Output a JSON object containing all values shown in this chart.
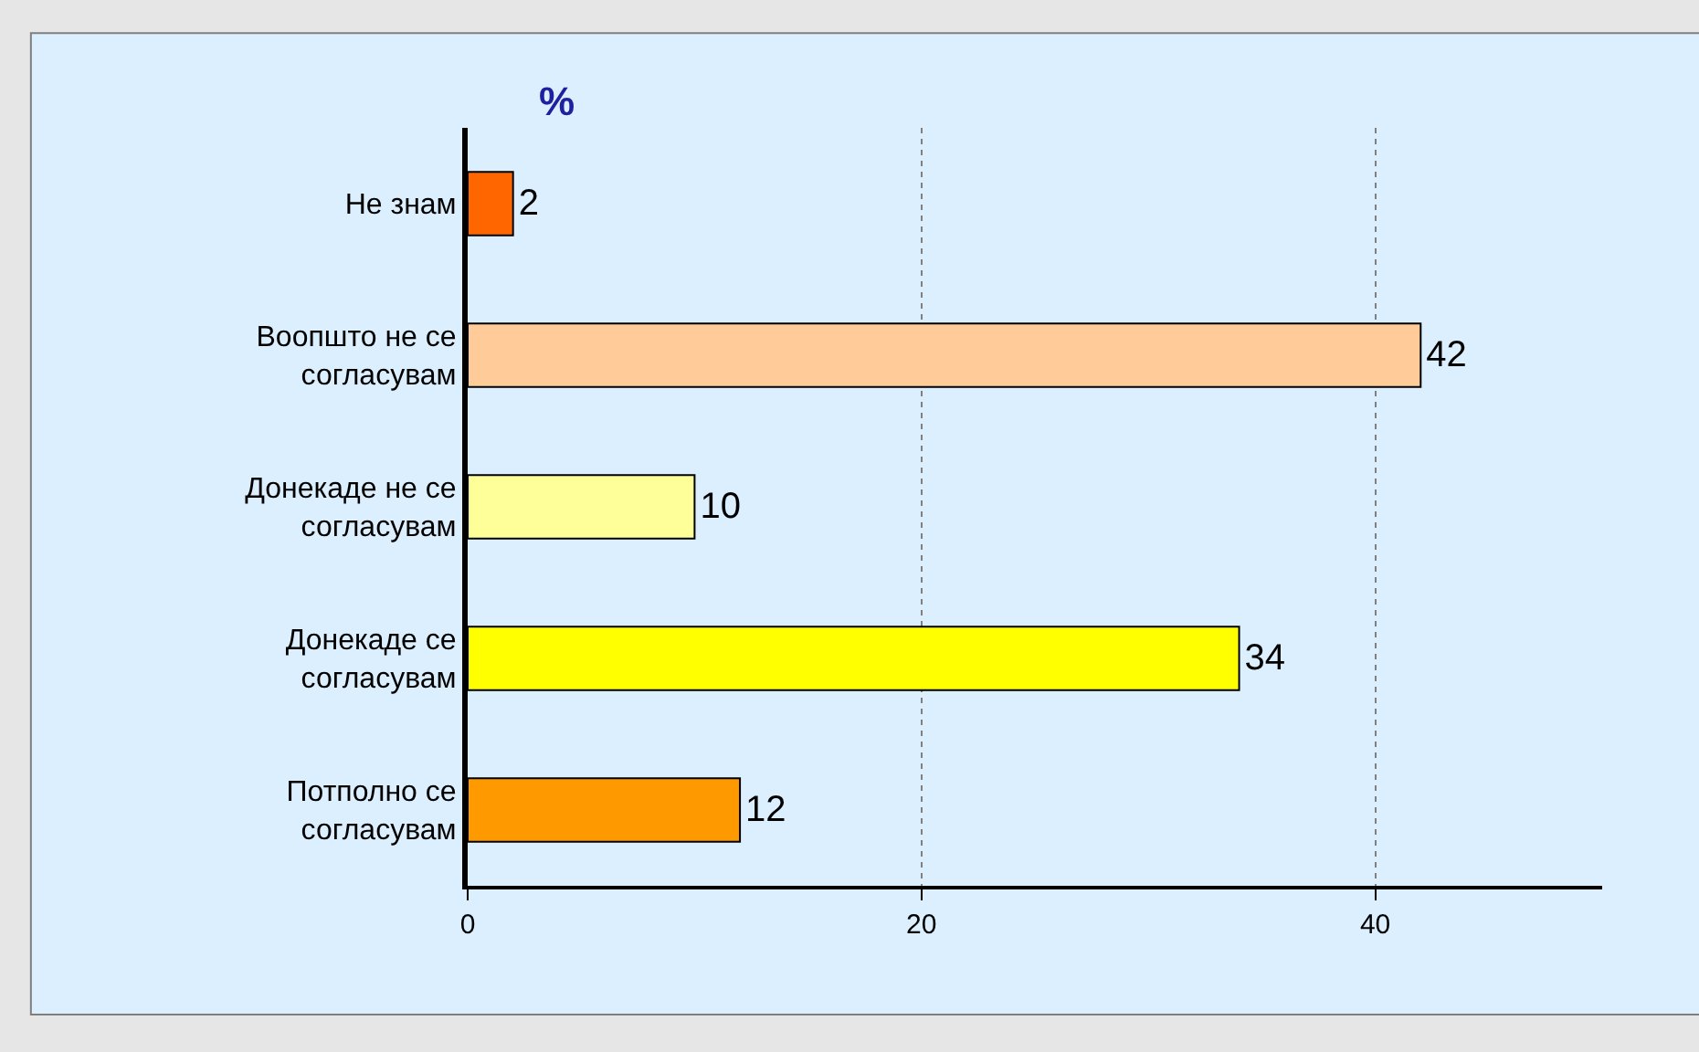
{
  "chart_data": {
    "type": "bar",
    "orientation": "horizontal",
    "categories": [
      "Не знам",
      "Воопшто не се\nсогласувам",
      "Донекаде не се\nсогласувам",
      "Донекаде се\nсогласувам",
      "Потполно се\nсогласувам"
    ],
    "values": [
      2,
      42,
      10,
      34,
      12
    ],
    "colors": [
      "#ff6600",
      "#ffcc99",
      "#ffff99",
      "#ffff00",
      "#ff9900"
    ],
    "xlim": [
      0,
      50
    ],
    "xticks": [
      0,
      20,
      40
    ],
    "grid": "x",
    "data_labels": true,
    "annotations": [
      "%"
    ]
  }
}
